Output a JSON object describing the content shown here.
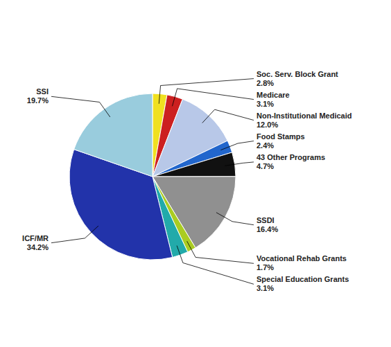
{
  "chart_data": {
    "type": "pie",
    "categories": [
      "Soc. Serv. Block Grant",
      "Medicare",
      "Non-Institutional Medicaid",
      "Food Stamps",
      "43 Other Programs",
      "SSDI",
      "Vocational Rehab Grants",
      "Special Education Grants",
      "ICF/MR",
      "SSI"
    ],
    "values": [
      2.8,
      3.1,
      12.0,
      2.4,
      4.7,
      16.4,
      1.7,
      3.1,
      34.2,
      19.7
    ],
    "value_labels": [
      "2.8%",
      "3.1%",
      "12.0%",
      "2.4%",
      "4.7%",
      "16.4%",
      "1.7%",
      "3.1%",
      "34.2%",
      "19.7%"
    ],
    "colors": [
      "#f0e020",
      "#cc2020",
      "#b8c8e8",
      "#2266cc",
      "#111111",
      "#909090",
      "#aacc22",
      "#22aaaa",
      "#2233aa",
      "#99ccdd"
    ],
    "data_labels": true
  }
}
